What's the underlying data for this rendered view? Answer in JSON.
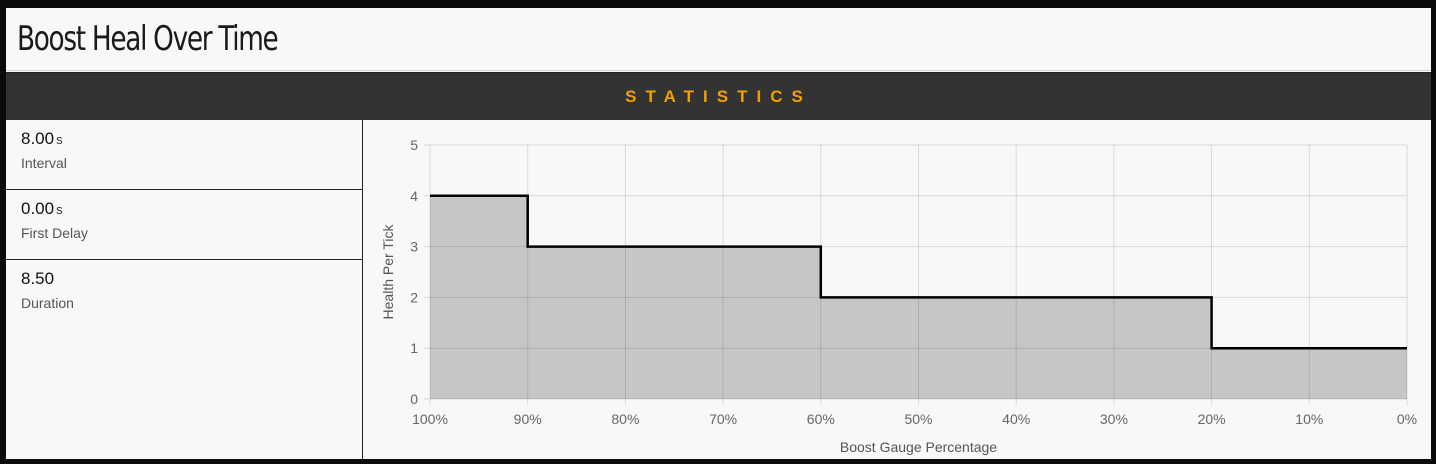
{
  "header": {
    "title": "Boost Heal Over Time"
  },
  "section": {
    "label": "STATISTICS"
  },
  "stats": [
    {
      "value": "8.00",
      "unit": "s",
      "label": "Interval"
    },
    {
      "value": "0.00",
      "unit": "s",
      "label": "First Delay"
    },
    {
      "value": "8.50",
      "unit": "",
      "label": "Duration"
    }
  ],
  "colors": {
    "accent": "#f0a000",
    "header_bg": "#333333",
    "fill": "#c6c6c6",
    "line": "#000000"
  },
  "chart_data": {
    "type": "area",
    "step": true,
    "xlabel": "Boost Gauge Percentage",
    "ylabel": "Health Per Tick",
    "x_ticks": [
      "100%",
      "90%",
      "80%",
      "70%",
      "60%",
      "50%",
      "40%",
      "30%",
      "20%",
      "10%",
      "0%"
    ],
    "y_ticks": [
      "0",
      "1",
      "2",
      "3",
      "4",
      "5"
    ],
    "xlim": [
      100,
      0
    ],
    "ylim": [
      0,
      5
    ],
    "grid": true,
    "points": [
      {
        "x": 100,
        "y": 4
      },
      {
        "x": 90,
        "y": 3
      },
      {
        "x": 60,
        "y": 2
      },
      {
        "x": 20,
        "y": 1
      },
      {
        "x": 0,
        "y": 1
      }
    ]
  }
}
